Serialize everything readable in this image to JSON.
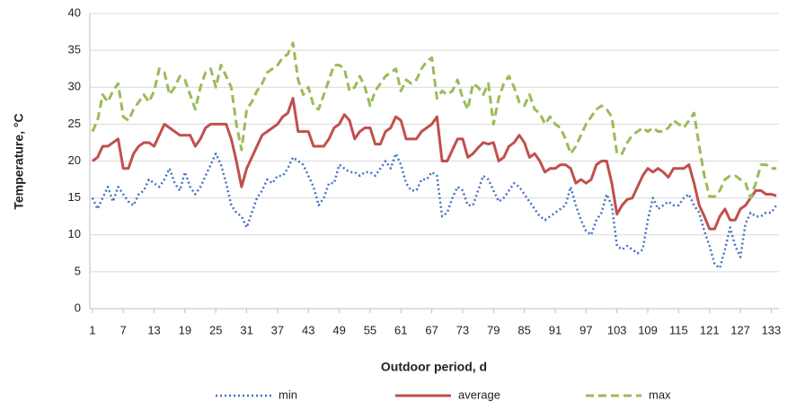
{
  "chart_data": {
    "type": "line",
    "x_label": "Outdoor period, d",
    "y_label": "Temperature, °C",
    "x": [
      1,
      2,
      3,
      4,
      5,
      6,
      7,
      8,
      9,
      10,
      11,
      12,
      13,
      14,
      15,
      16,
      17,
      18,
      19,
      20,
      21,
      22,
      23,
      24,
      25,
      26,
      27,
      28,
      29,
      30,
      31,
      32,
      33,
      34,
      35,
      36,
      37,
      38,
      39,
      40,
      41,
      42,
      43,
      44,
      45,
      46,
      47,
      48,
      49,
      50,
      51,
      52,
      53,
      54,
      55,
      56,
      57,
      58,
      59,
      60,
      61,
      62,
      63,
      64,
      65,
      66,
      67,
      68,
      69,
      70,
      71,
      72,
      73,
      74,
      75,
      76,
      77,
      78,
      79,
      80,
      81,
      82,
      83,
      84,
      85,
      86,
      87,
      88,
      89,
      90,
      91,
      92,
      93,
      94,
      95,
      96,
      97,
      98,
      99,
      100,
      101,
      102,
      103,
      104,
      105,
      106,
      107,
      108,
      109,
      110,
      111,
      112,
      113,
      114,
      115,
      116,
      117,
      118,
      119,
      120,
      121,
      122,
      123,
      124,
      125,
      126,
      127,
      128,
      129,
      130,
      131,
      132,
      133,
      134
    ],
    "xlim": [
      0.5,
      134.5
    ],
    "xticks": [
      1,
      7,
      13,
      19,
      25,
      31,
      37,
      43,
      49,
      55,
      61,
      67,
      73,
      79,
      85,
      91,
      97,
      103,
      109,
      115,
      121,
      127,
      133
    ],
    "ylim": [
      0,
      40
    ],
    "yticks": [
      0,
      5,
      10,
      15,
      20,
      25,
      30,
      35,
      40
    ],
    "grid": true,
    "legend": "bottom",
    "series": [
      {
        "name": "min",
        "color": "#4472c4",
        "style": "dotted",
        "values": [
          15,
          13.5,
          15,
          16.5,
          14.5,
          16.5,
          15.5,
          14.5,
          14,
          15.5,
          16,
          17.5,
          17,
          16.5,
          17.5,
          19,
          17,
          16,
          18.5,
          16.5,
          15.5,
          16.5,
          18,
          19.5,
          21,
          19.5,
          17,
          14,
          13,
          12.5,
          11,
          13,
          15,
          16,
          17.5,
          17,
          18,
          18,
          19,
          20.5,
          20,
          19.5,
          18,
          16.5,
          14,
          15,
          17,
          17,
          19.5,
          19,
          18.5,
          18.5,
          18,
          18.5,
          18.5,
          18,
          19,
          20,
          19,
          21,
          19.5,
          17,
          16,
          16,
          17.5,
          17.5,
          18.5,
          18,
          12.5,
          13,
          15,
          16.5,
          16,
          14,
          14,
          16,
          18,
          17.5,
          16,
          14.5,
          15,
          16,
          17,
          16.5,
          15.5,
          14.5,
          13.5,
          12.5,
          12,
          12.5,
          13,
          13.5,
          14,
          16.5,
          14,
          12,
          10.5,
          10,
          12,
          13,
          15.5,
          14,
          8.5,
          8,
          8.5,
          8,
          7.5,
          8,
          12,
          15,
          13.5,
          14,
          14.5,
          14,
          14,
          15,
          15.5,
          14,
          13,
          10.5,
          8.5,
          6,
          5.5,
          8,
          11,
          8.5,
          7,
          11.5,
          13,
          12.5,
          12.5,
          13,
          13,
          14
        ]
      },
      {
        "name": "average",
        "color": "#c0504d",
        "style": "solid",
        "values": [
          20,
          20.5,
          22,
          22,
          22.5,
          23,
          19,
          19,
          21,
          22,
          22.5,
          22.5,
          22,
          23.5,
          25,
          24.5,
          24,
          23.5,
          23.5,
          23.5,
          22,
          23,
          24.5,
          25,
          25,
          25,
          25,
          23,
          20,
          16.5,
          19,
          20.5,
          22,
          23.5,
          24,
          24.5,
          25,
          26,
          26.5,
          28.5,
          24,
          24,
          24,
          22,
          22,
          22,
          23,
          24.5,
          25,
          26.3,
          25.5,
          23,
          24,
          24.5,
          24.5,
          22.3,
          22.3,
          24,
          24.5,
          26,
          25.5,
          23,
          23,
          23,
          24,
          24.5,
          25,
          26,
          20,
          20,
          21.5,
          23,
          23,
          20.5,
          21,
          21.8,
          22.5,
          22.3,
          22.5,
          20,
          20.5,
          22,
          22.5,
          23.5,
          22.5,
          20.5,
          21,
          20,
          18.5,
          19,
          19,
          19.5,
          19.5,
          19,
          17,
          17.5,
          17,
          17.5,
          19.5,
          20,
          20,
          17,
          12.8,
          14,
          14.8,
          15,
          16.5,
          18,
          19,
          18.5,
          19,
          18.5,
          17.8,
          19,
          19,
          19,
          19.5,
          17,
          14,
          12.5,
          10.8,
          10.8,
          12.5,
          13.5,
          12,
          12,
          13.5,
          14,
          15,
          16,
          16,
          15.5,
          15.5,
          15.3
        ]
      },
      {
        "name": "max",
        "color": "#9bbb59",
        "style": "dashed",
        "values": [
          24,
          25.5,
          29,
          28,
          29.5,
          30.5,
          26,
          25.5,
          27,
          28,
          29,
          28,
          29.5,
          32.5,
          32,
          29,
          30,
          31.5,
          31,
          29,
          27,
          30,
          32,
          32.5,
          30,
          33,
          31.5,
          30,
          25,
          21.5,
          27,
          28,
          29.5,
          30.5,
          32,
          32.5,
          33,
          34,
          34.5,
          36,
          31,
          29,
          30,
          27.5,
          27,
          29,
          31,
          33,
          33,
          32.5,
          29.5,
          30,
          31.5,
          30,
          27.5,
          29.5,
          30.5,
          31.5,
          32,
          32.5,
          29.5,
          31,
          30.5,
          31,
          32.5,
          33.5,
          34,
          28.5,
          29.5,
          29,
          29.5,
          31,
          28.5,
          27,
          30.5,
          30,
          29,
          30.5,
          25,
          28.5,
          30.5,
          31.5,
          30,
          28,
          27.5,
          29,
          27,
          26.5,
          25,
          26,
          25,
          24.5,
          23,
          21,
          22,
          23.5,
          25,
          26,
          27,
          27.5,
          27,
          26,
          21,
          21,
          22.5,
          23.5,
          24,
          24.5,
          24,
          24.5,
          24,
          24,
          24.5,
          25.5,
          25,
          24.5,
          25.5,
          26.5,
          22,
          18,
          15.2,
          15.2,
          16,
          17.5,
          18,
          18,
          17.5,
          17,
          15,
          17,
          19.5,
          19.5,
          19,
          19
        ]
      }
    ]
  }
}
